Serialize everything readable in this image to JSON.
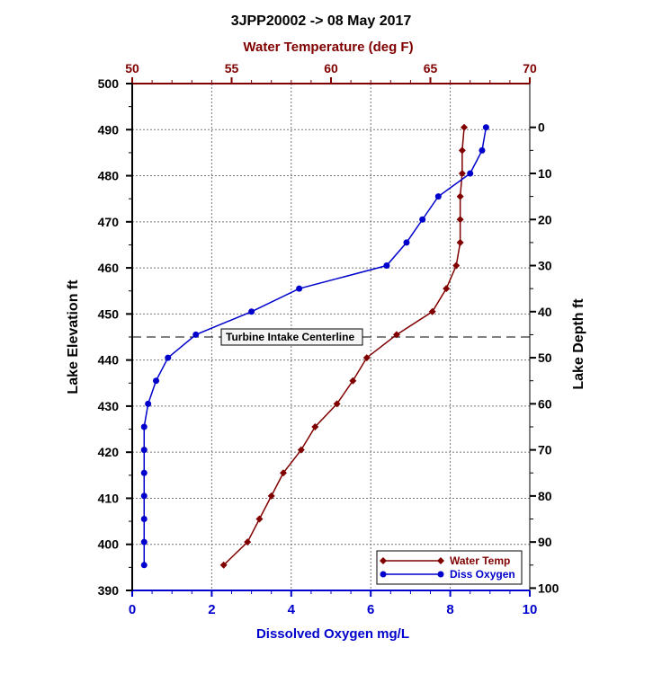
{
  "chart_data": {
    "type": "line",
    "title": "3JPP20002  ->  08 May 2017",
    "top_axis": {
      "label": "Water Temperature (deg F)",
      "range": [
        50,
        70
      ],
      "ticks": [
        50,
        55,
        60,
        65,
        70
      ],
      "color": "#800000"
    },
    "bottom_axis": {
      "label": "Dissolved Oxygen mg/L",
      "range": [
        0,
        10
      ],
      "ticks": [
        0,
        2,
        4,
        6,
        8,
        10
      ],
      "color": "#0000cc"
    },
    "left_axis": {
      "label": "Lake  Elevation  ft",
      "range": [
        390,
        500
      ],
      "ticks": [
        390,
        400,
        410,
        420,
        430,
        440,
        450,
        460,
        470,
        480,
        490,
        500
      ]
    },
    "right_axis": {
      "label": "Lake  Depth  ft",
      "ticks": [
        0,
        10,
        20,
        30,
        40,
        50,
        60,
        70,
        80,
        90,
        100
      ]
    },
    "grid": true,
    "annotation": {
      "label": "Turbine Intake Centerline",
      "elevation": 445
    },
    "legend_position": "bottom-right",
    "series": [
      {
        "name": "Water Temp",
        "axis": "top",
        "color": "#800000",
        "marker": "diamond",
        "points": [
          [
            66.7,
            490.5
          ],
          [
            66.6,
            485.5
          ],
          [
            66.6,
            480.5
          ],
          [
            66.5,
            475.5
          ],
          [
            66.5,
            470.5
          ],
          [
            66.5,
            465.5
          ],
          [
            66.3,
            460.5
          ],
          [
            65.8,
            455.5
          ],
          [
            65.1,
            450.5
          ],
          [
            63.3,
            445.5
          ],
          [
            61.8,
            440.5
          ],
          [
            61.1,
            435.5
          ],
          [
            60.3,
            430.5
          ],
          [
            59.2,
            425.5
          ],
          [
            58.5,
            420.5
          ],
          [
            57.6,
            415.5
          ],
          [
            57.0,
            410.5
          ],
          [
            56.4,
            405.5
          ],
          [
            55.8,
            400.5
          ],
          [
            54.6,
            395.5
          ]
        ]
      },
      {
        "name": "Diss Oxygen",
        "axis": "bottom",
        "color": "#0000cc",
        "marker": "circle",
        "points": [
          [
            8.9,
            490.5
          ],
          [
            8.8,
            485.5
          ],
          [
            8.5,
            480.5
          ],
          [
            7.7,
            475.5
          ],
          [
            7.3,
            470.5
          ],
          [
            6.9,
            465.5
          ],
          [
            6.4,
            460.5
          ],
          [
            4.2,
            455.5
          ],
          [
            3.0,
            450.5
          ],
          [
            1.6,
            445.5
          ],
          [
            0.9,
            440.5
          ],
          [
            0.6,
            435.5
          ],
          [
            0.4,
            430.5
          ],
          [
            0.3,
            425.5
          ],
          [
            0.3,
            420.5
          ],
          [
            0.3,
            415.5
          ],
          [
            0.3,
            410.5
          ],
          [
            0.3,
            405.5
          ],
          [
            0.3,
            400.5
          ],
          [
            0.3,
            395.5
          ]
        ]
      }
    ]
  }
}
